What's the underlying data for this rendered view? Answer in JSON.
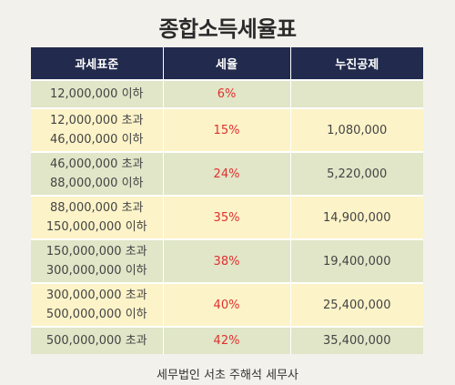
{
  "title": "종합소득세율표",
  "headers": [
    "과세표준",
    "세율",
    "누진공제"
  ],
  "rows": [
    {
      "bracket_line1": "12,000,000 이하",
      "bracket_line2": "",
      "rate": "6%",
      "deduction": ""
    },
    {
      "bracket_line1": "12,000,000 초과",
      "bracket_line2": "46,000,000 이하",
      "rate": "15%",
      "deduction": "1,080,000"
    },
    {
      "bracket_line1": "46,000,000 초과",
      "bracket_line2": "88,000,000 이하",
      "rate": "24%",
      "deduction": "5,220,000"
    },
    {
      "bracket_line1": "88,000,000 초과",
      "bracket_line2": "150,000,000 이하",
      "rate": "35%",
      "deduction": "14,900,000"
    },
    {
      "bracket_line1": "150,000,000 초과",
      "bracket_line2": "300,000,000 이하",
      "rate": "38%",
      "deduction": "19,400,000"
    },
    {
      "bracket_line1": "300,000,000 초과",
      "bracket_line2": "500,000,000 이하",
      "rate": "40%",
      "deduction": "25,400,000"
    },
    {
      "bracket_line1": "500,000,000 초과",
      "bracket_line2": "",
      "rate": "42%",
      "deduction": "35,400,000"
    }
  ],
  "footer": "세무법인 서초 주해석 세무사",
  "colors": {
    "header_bg": "#222b4d",
    "row_green": "#e0e6c7",
    "row_yellow": "#fcf3c8",
    "rate_text": "#e03030"
  }
}
